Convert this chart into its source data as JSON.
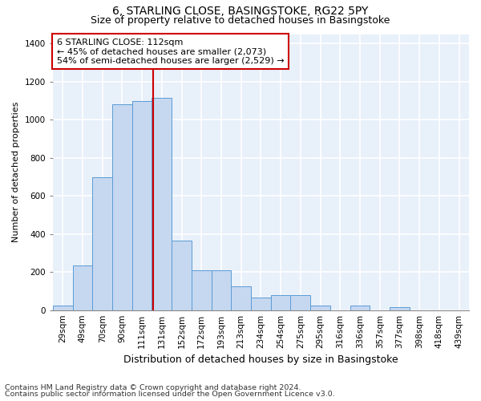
{
  "title": "6, STARLING CLOSE, BASINGSTOKE, RG22 5PY",
  "subtitle": "Size of property relative to detached houses in Basingstoke",
  "xlabel": "Distribution of detached houses by size in Basingstoke",
  "ylabel": "Number of detached properties",
  "categories": [
    "29sqm",
    "49sqm",
    "70sqm",
    "90sqm",
    "111sqm",
    "131sqm",
    "152sqm",
    "172sqm",
    "193sqm",
    "213sqm",
    "234sqm",
    "254sqm",
    "275sqm",
    "295sqm",
    "316sqm",
    "336sqm",
    "357sqm",
    "377sqm",
    "398sqm",
    "418sqm",
    "439sqm"
  ],
  "bar_values": [
    25,
    235,
    700,
    1080,
    1100,
    1115,
    365,
    210,
    210,
    125,
    65,
    80,
    80,
    25,
    0,
    25,
    0,
    15,
    0,
    0,
    0
  ],
  "bar_color": "#c5d8f0",
  "bar_edge_color": "#5b9bd5",
  "background_color": "#e8f0fa",
  "grid_color": "#ffffff",
  "annotation_text": "6 STARLING CLOSE: 112sqm\n← 45% of detached houses are smaller (2,073)\n54% of semi-detached houses are larger (2,529) →",
  "annotation_box_color": "#ffffff",
  "annotation_box_edge": "#cc0000",
  "vline_color": "#cc0000",
  "ylim": [
    0,
    1450
  ],
  "yticks": [
    0,
    200,
    400,
    600,
    800,
    1000,
    1200,
    1400
  ],
  "footnote1": "Contains HM Land Registry data © Crown copyright and database right 2024.",
  "footnote2": "Contains public sector information licensed under the Open Government Licence v3.0.",
  "title_fontsize": 10,
  "subtitle_fontsize": 9,
  "xlabel_fontsize": 9,
  "ylabel_fontsize": 8,
  "tick_fontsize": 7.5,
  "annotation_fontsize": 8,
  "footnote_fontsize": 6.8
}
